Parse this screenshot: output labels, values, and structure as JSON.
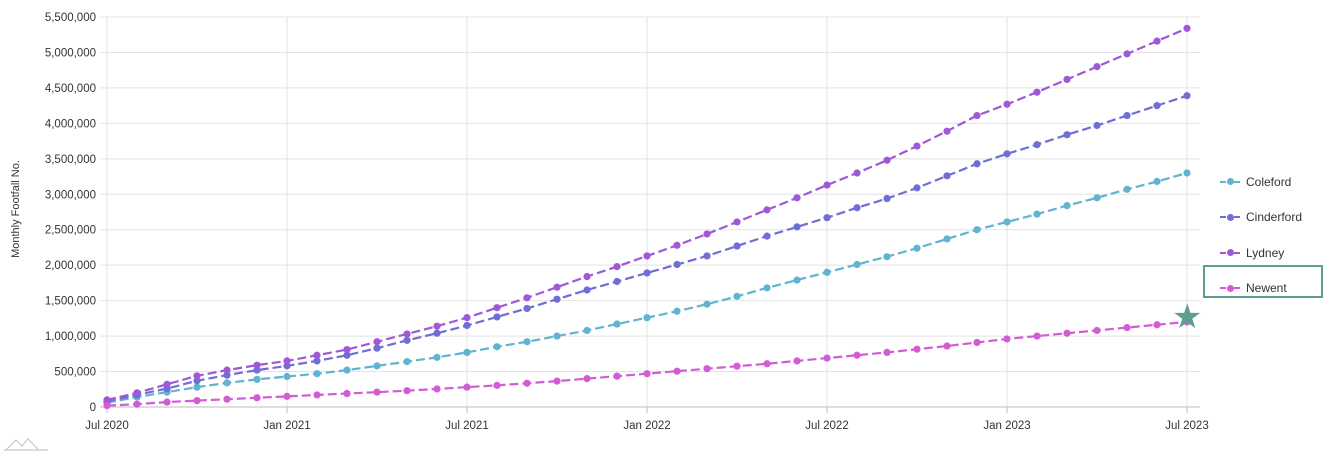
{
  "chart_data": {
    "type": "line",
    "ylabel": "Monthly Footfall No.",
    "xlabel": "",
    "title": "",
    "ylim": [
      0,
      5500000
    ],
    "y_ticks": [
      0,
      500000,
      1000000,
      1500000,
      2000000,
      2500000,
      3000000,
      3500000,
      4000000,
      4500000,
      5000000,
      5500000
    ],
    "y_tick_labels": [
      "0",
      "500,000",
      "1,000,000",
      "1,500,000",
      "2,000,000",
      "2,500,000",
      "3,000,000",
      "3,500,000",
      "4,000,000",
      "4,500,000",
      "5,000,000",
      "5,500,000"
    ],
    "x_range": [
      "2020-07",
      "2023-07"
    ],
    "x_ticks": [
      "2020-07",
      "2021-01",
      "2021-07",
      "2022-01",
      "2022-07",
      "2023-01",
      "2023-07"
    ],
    "x_tick_labels": [
      "Jul 2020",
      "Jan 2021",
      "Jul 2021",
      "Jan 2022",
      "Jul 2022",
      "Jan 2023",
      "Jul 2023"
    ],
    "grid": true,
    "legend_position": "right",
    "highlighted_series": "Newent",
    "x": [
      "2020-07",
      "2020-08",
      "2020-09",
      "2020-10",
      "2020-11",
      "2020-12",
      "2021-01",
      "2021-02",
      "2021-03",
      "2021-04",
      "2021-05",
      "2021-06",
      "2021-07",
      "2021-08",
      "2021-09",
      "2021-10",
      "2021-11",
      "2021-12",
      "2022-01",
      "2022-02",
      "2022-03",
      "2022-04",
      "2022-05",
      "2022-06",
      "2022-07",
      "2022-08",
      "2022-09",
      "2022-10",
      "2022-11",
      "2022-12",
      "2023-01",
      "2023-02",
      "2023-03",
      "2023-04",
      "2023-05",
      "2023-06",
      "2023-07"
    ],
    "series": [
      {
        "name": "Coleford",
        "color": "#5fb4d1",
        "values": [
          60000,
          140000,
          210000,
          280000,
          340000,
          390000,
          430000,
          470000,
          520000,
          580000,
          640000,
          700000,
          770000,
          850000,
          920000,
          1000000,
          1080000,
          1170000,
          1260000,
          1350000,
          1450000,
          1560000,
          1680000,
          1790000,
          1900000,
          2010000,
          2120000,
          2240000,
          2370000,
          2500000,
          2610000,
          2720000,
          2840000,
          2950000,
          3070000,
          3180000,
          3300000
        ]
      },
      {
        "name": "Cinderford",
        "color": "#6e6ed6",
        "values": [
          80000,
          170000,
          260000,
          370000,
          450000,
          520000,
          580000,
          650000,
          730000,
          830000,
          940000,
          1040000,
          1150000,
          1270000,
          1390000,
          1520000,
          1650000,
          1770000,
          1890000,
          2010000,
          2130000,
          2270000,
          2410000,
          2540000,
          2670000,
          2810000,
          2940000,
          3090000,
          3260000,
          3430000,
          3570000,
          3700000,
          3840000,
          3970000,
          4110000,
          4250000,
          4390000
        ]
      },
      {
        "name": "Lydney",
        "color": "#a058d8",
        "values": [
          100000,
          200000,
          320000,
          440000,
          520000,
          590000,
          650000,
          730000,
          810000,
          920000,
          1030000,
          1140000,
          1260000,
          1400000,
          1540000,
          1690000,
          1840000,
          1980000,
          2130000,
          2280000,
          2440000,
          2610000,
          2780000,
          2950000,
          3130000,
          3300000,
          3480000,
          3680000,
          3890000,
          4110000,
          4270000,
          4440000,
          4620000,
          4800000,
          4980000,
          5160000,
          5340000
        ]
      },
      {
        "name": "Newent",
        "color": "#d35cd5",
        "values": [
          20000,
          40000,
          70000,
          90000,
          110000,
          130000,
          150000,
          170000,
          190000,
          210000,
          230000,
          255000,
          280000,
          305000,
          335000,
          365000,
          400000,
          435000,
          470000,
          505000,
          540000,
          575000,
          610000,
          650000,
          690000,
          730000,
          770000,
          815000,
          860000,
          910000,
          960000,
          1000000,
          1040000,
          1080000,
          1120000,
          1160000,
          1200000
        ]
      }
    ]
  }
}
